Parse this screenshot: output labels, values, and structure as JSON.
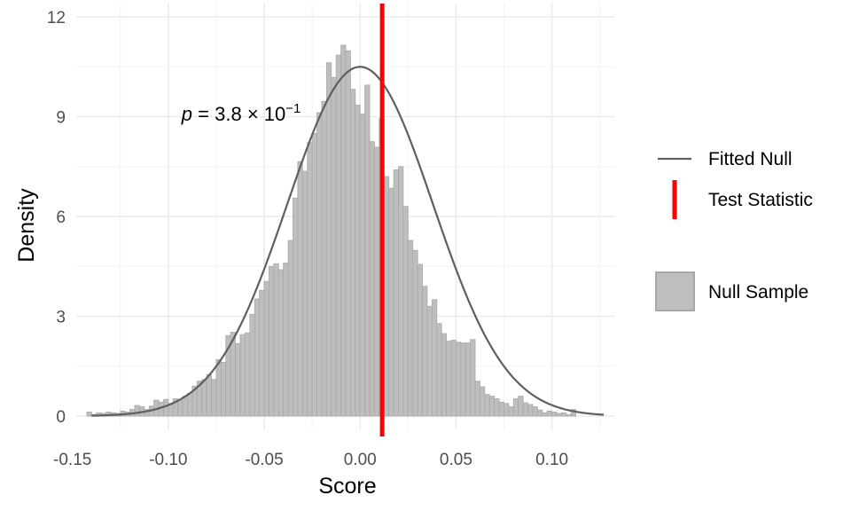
{
  "chart_data": {
    "type": "bar",
    "xlabel": "Score",
    "ylabel": "Density",
    "xlim": [
      -0.148,
      0.133
    ],
    "ylim": [
      -0.4,
      12.4
    ],
    "x_ticks": [
      -0.15,
      -0.1,
      -0.05,
      0.0,
      0.05,
      0.1
    ],
    "x_tick_labels": [
      "-0.15",
      "-0.10",
      "-0.05",
      "0.00",
      "0.05",
      "0.10"
    ],
    "y_ticks": [
      0,
      3,
      6,
      9,
      12
    ],
    "y_tick_labels": [
      "0",
      "3",
      "6",
      "9",
      "12"
    ],
    "grid": true,
    "bin_width": 0.0025,
    "bin_start": -0.1425,
    "histogram_densities": [
      0.12,
      0.05,
      0.1,
      0.08,
      0.12,
      0.1,
      0.08,
      0.15,
      0.12,
      0.2,
      0.32,
      0.28,
      0.2,
      0.3,
      0.48,
      0.42,
      0.5,
      0.38,
      0.52,
      0.48,
      0.6,
      0.68,
      0.9,
      1.05,
      1.1,
      1.25,
      1.1,
      1.7,
      1.62,
      2.42,
      2.52,
      2.18,
      2.45,
      2.5,
      3.06,
      3.52,
      3.78,
      4.05,
      4.5,
      4.58,
      4.4,
      4.6,
      5.28,
      6.55,
      7.65,
      7.36,
      8.22,
      8.5,
      9.12,
      9.46,
      10.62,
      10.18,
      10.85,
      11.15,
      10.98,
      9.82,
      9.35,
      9.08,
      9.95,
      8.25,
      8.08,
      8.95,
      7.2,
      6.85,
      7.4,
      7.5,
      6.3,
      5.28,
      4.98,
      4.56,
      3.9,
      3.3,
      3.5,
      2.78,
      2.48,
      2.25,
      2.28,
      2.22,
      2.2,
      2.2,
      2.3,
      1.05,
      0.88,
      0.65,
      0.6,
      0.52,
      0.42,
      0.38,
      0.28,
      0.52,
      0.6,
      0.4,
      0.35,
      0.28,
      0.18,
      0.1,
      0.15,
      0.12,
      0.08,
      0.1,
      0.04,
      0.2
    ],
    "fitted_null": {
      "mean": 0.0,
      "sd": 0.038
    },
    "test_statistic": 0.0115,
    "annotation": {
      "p": "p",
      "equals": " = 3.8 × 10",
      "exponent": "−1",
      "x": -0.062,
      "y": 9.1
    },
    "series": [
      {
        "name": "Fitted Null",
        "kind": "line",
        "color": "#5f5f5f"
      },
      {
        "name": "Test Statistic",
        "kind": "vline",
        "color": "#ff0000"
      },
      {
        "name": "Null Sample",
        "kind": "bar",
        "color": "#bebebe"
      }
    ],
    "legend_position": "right"
  }
}
